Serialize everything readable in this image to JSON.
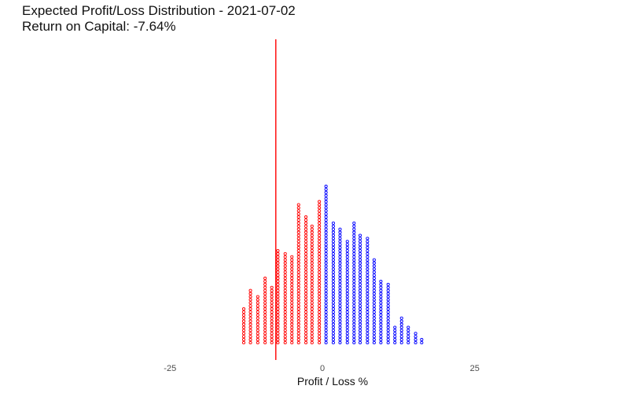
{
  "chart_data": {
    "type": "dotplot",
    "title": "Expected Profit/Loss Distribution - 2021-07-02",
    "subtitle": "Return on Capital: -7.64%",
    "xlabel": "Profit / Loss %",
    "ylabel": "",
    "xlim": [
      -25,
      50
    ],
    "x_ticks": [
      -25,
      0,
      25
    ],
    "grid": false,
    "legend": "none",
    "reference_line": {
      "x": -7.64,
      "color": "#ff0000"
    },
    "series": [
      {
        "color": "#ff0000",
        "points": [
          {
            "x": -12.9,
            "count": 12
          },
          {
            "x": -11.8,
            "count": 18
          },
          {
            "x": -10.6,
            "count": 16
          },
          {
            "x": -9.4,
            "count": 22
          },
          {
            "x": -8.3,
            "count": 19
          },
          {
            "x": -7.3,
            "count": 31
          },
          {
            "x": -6.1,
            "count": 30
          },
          {
            "x": -5.0,
            "count": 29
          },
          {
            "x": -3.9,
            "count": 46
          },
          {
            "x": -2.7,
            "count": 42
          },
          {
            "x": -1.7,
            "count": 39
          },
          {
            "x": -0.5,
            "count": 47
          }
        ]
      },
      {
        "color": "#0000ff",
        "points": [
          {
            "x": 0.6,
            "count": 52
          },
          {
            "x": 1.8,
            "count": 40
          },
          {
            "x": 2.9,
            "count": 38
          },
          {
            "x": 4.1,
            "count": 34
          },
          {
            "x": 5.2,
            "count": 40
          },
          {
            "x": 6.2,
            "count": 36
          },
          {
            "x": 7.4,
            "count": 35
          },
          {
            "x": 8.5,
            "count": 28
          },
          {
            "x": 9.6,
            "count": 21
          },
          {
            "x": 10.8,
            "count": 20
          },
          {
            "x": 11.9,
            "count": 6
          },
          {
            "x": 13.0,
            "count": 9
          },
          {
            "x": 14.1,
            "count": 6
          },
          {
            "x": 15.3,
            "count": 4
          },
          {
            "x": 16.3,
            "count": 2
          }
        ]
      }
    ]
  }
}
